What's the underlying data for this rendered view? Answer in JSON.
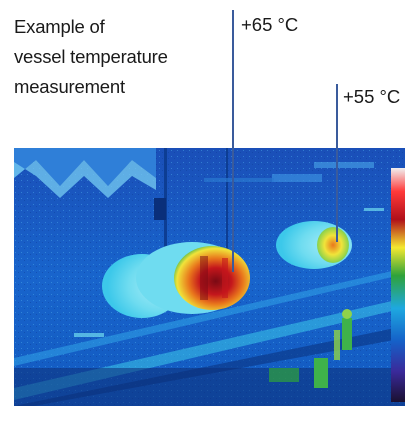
{
  "caption": {
    "line1": "Example of",
    "line2": "vessel temperature",
    "line3": "measurement"
  },
  "callouts": [
    {
      "label": "+65 °C"
    },
    {
      "label": "+55 °C"
    }
  ],
  "thermal_image": {
    "subject": "infrared thermal image of vessels",
    "colors": {
      "background_blue": "#1560c8",
      "cool_cyan": "#3cc8ea",
      "pale_cyan": "#a8ecf7",
      "warm_yellow": "#f0e43a",
      "hot_orange": "#e9781c",
      "hottest_red": "#c4161c",
      "green": "#3fb24a"
    },
    "palette_scale": [
      "#f0f0f0",
      "#ff3a3a",
      "#b0101a",
      "#f4e830",
      "#2fa23a",
      "#1ea8e0",
      "#1560c8",
      "#3a2a9a",
      "#1a1030"
    ]
  }
}
